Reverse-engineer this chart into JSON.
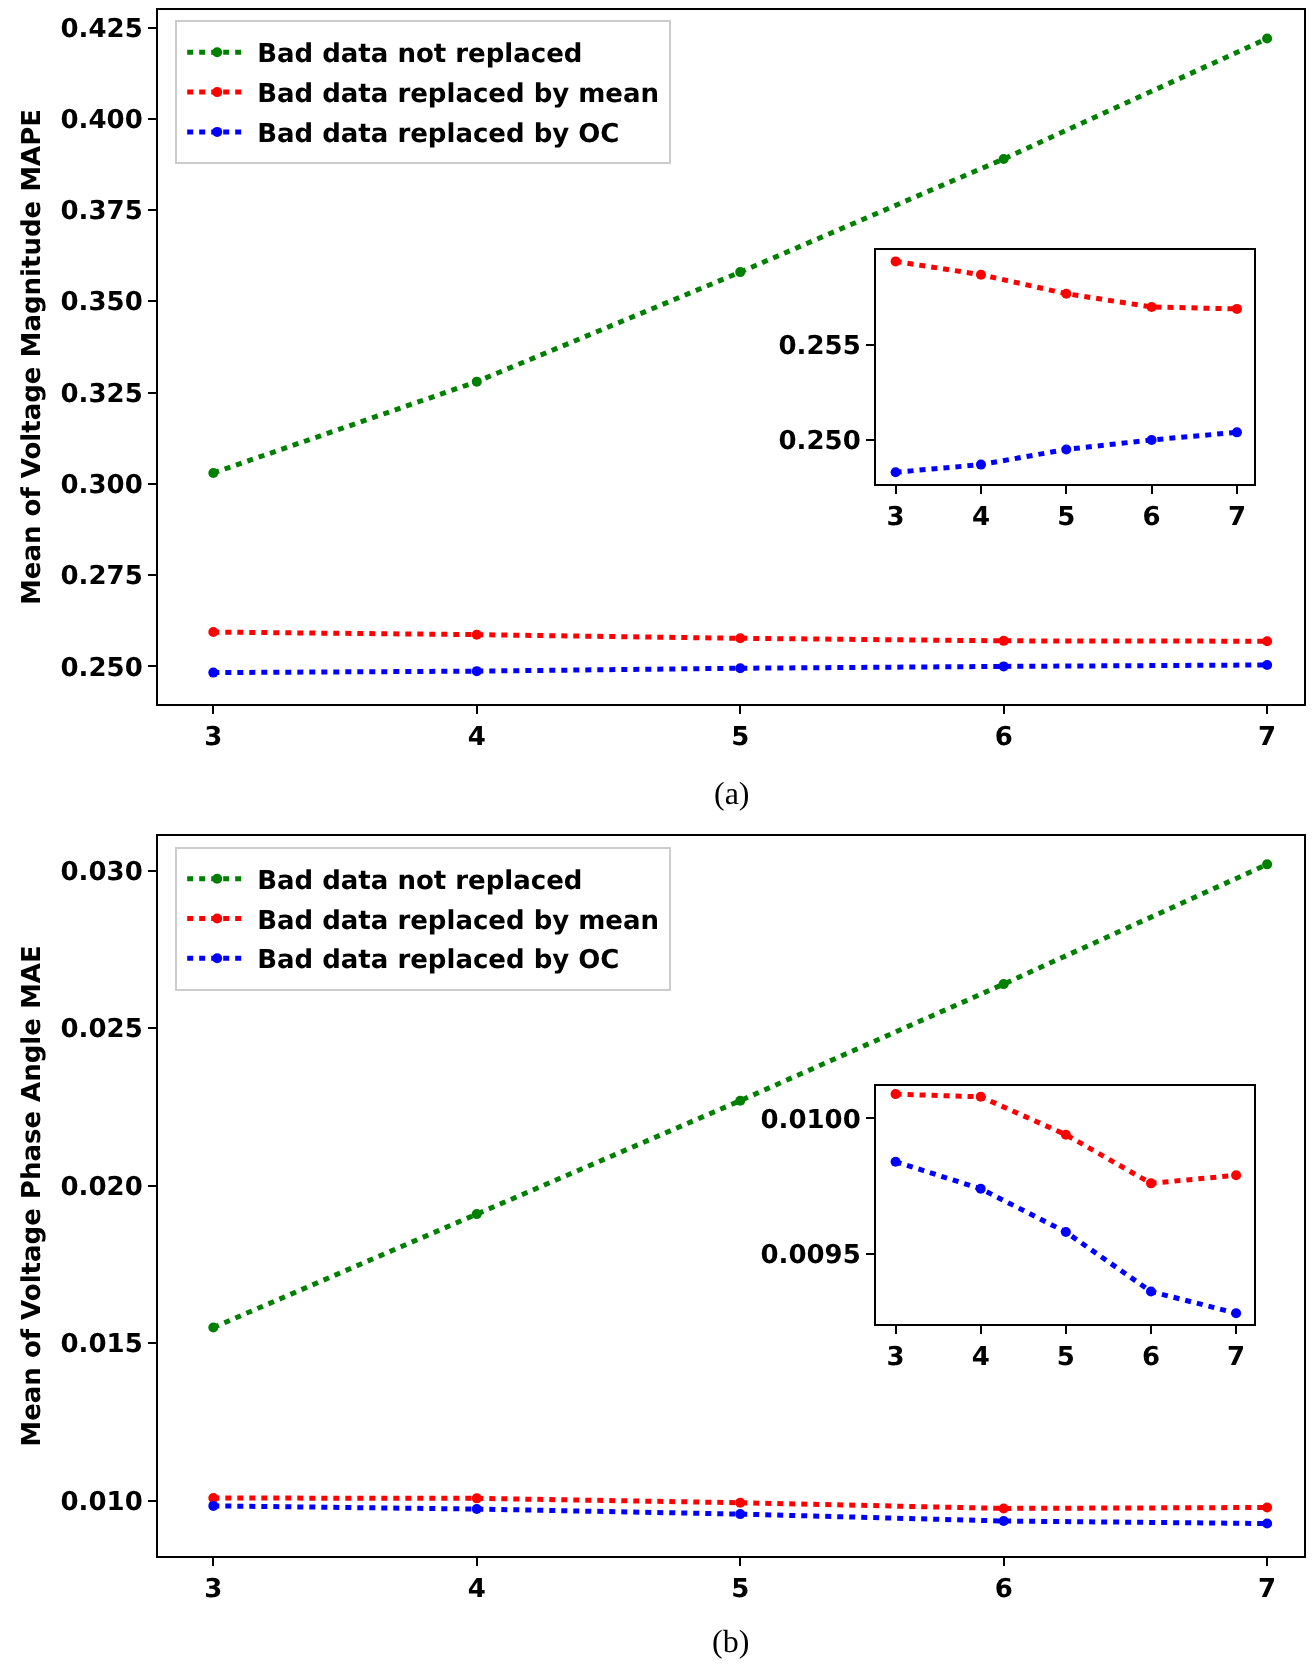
{
  "chart_data": [
    {
      "type": "line",
      "ylabel": "Mean of Voltage Magnitude MAPE",
      "x": [
        3,
        4,
        5,
        6,
        7
      ],
      "xlim": [
        2.79,
        7.14
      ],
      "xticks": [
        3,
        4,
        5,
        6,
        7
      ],
      "ylim": [
        0.2397,
        0.4298
      ],
      "yticks": [
        {
          "value": 0.25,
          "label": "0.250"
        },
        0.275,
        {
          "value": 0.3,
          "label": "0.300"
        },
        0.325,
        {
          "value": 0.35,
          "label": "0.350"
        },
        0.375,
        {
          "value": 0.4,
          "label": "0.400"
        },
        0.425
      ],
      "marker": "circle",
      "line_style": "dotted",
      "grid": false,
      "legend": "top left",
      "annotations": [
        "(a)"
      ],
      "series": [
        {
          "name": "Bad data not replaced",
          "color": "#008000",
          "values": [
            0.303,
            0.328,
            0.358,
            0.389,
            0.422
          ]
        },
        {
          "name": "Bad data replaced by mean",
          "color": "#ff0000",
          "values": [
            0.2594,
            0.2587,
            0.2577,
            0.257,
            0.2569
          ]
        },
        {
          "name": "Bad data replaced by OC",
          "color": "#0000ff",
          "values": [
            0.2483,
            0.2487,
            0.2495,
            0.25,
            0.2504
          ]
        }
      ]
    },
    {
      "type": "line",
      "x": [
        3,
        4,
        5,
        6,
        7
      ],
      "xlim": [
        2.77,
        7.2
      ],
      "xticks": [
        3,
        4,
        5,
        6,
        7
      ],
      "ylim": [
        0.24768,
        0.26
      ],
      "yticks": [
        {
          "value": 0.25,
          "label": "0.250"
        },
        0.255
      ],
      "marker": "circle",
      "line_style": "dotted",
      "grid": false,
      "series": [
        {
          "color": "#ff0000",
          "values": [
            0.2594,
            0.2587,
            0.2577,
            0.257,
            0.2569
          ]
        },
        {
          "color": "#0000ff",
          "values": [
            0.2483,
            0.2487,
            0.2495,
            0.25,
            0.2504
          ]
        }
      ]
    },
    {
      "type": "line",
      "ylabel": "Mean of Voltage Phase Angle MAE",
      "x": [
        3,
        4,
        5,
        6,
        7
      ],
      "xlim": [
        2.79,
        7.14
      ],
      "xticks": [
        3,
        4,
        5,
        6,
        7
      ],
      "ylim": [
        0.00825,
        0.0311
      ],
      "yticks": [
        {
          "value": 0.01,
          "label": "0.010"
        },
        0.015,
        {
          "value": 0.02,
          "label": "0.020"
        },
        0.025,
        {
          "value": 0.03,
          "label": "0.030"
        }
      ],
      "marker": "circle",
      "line_style": "dotted",
      "grid": false,
      "legend": "top left",
      "annotations": [
        "(b)"
      ],
      "series": [
        {
          "name": "Bad data not replaced",
          "color": "#008000",
          "values": [
            0.0155,
            0.0191,
            0.0227,
            0.0264,
            0.0302
          ]
        },
        {
          "name": "Bad data replaced by mean",
          "color": "#ff0000",
          "values": [
            0.01009,
            0.01008,
            0.00994,
            0.00976,
            0.00979
          ]
        },
        {
          "name": "Bad data replaced by OC",
          "color": "#0000ff",
          "values": [
            0.00984,
            0.00974,
            0.00958,
            0.00936,
            0.00928
          ]
        }
      ]
    },
    {
      "type": "line",
      "x": [
        3,
        4,
        5,
        6,
        7
      ],
      "xlim": [
        2.77,
        7.21
      ],
      "xticks": [
        3,
        4,
        5,
        6,
        7
      ],
      "ylim": [
        0.00924,
        0.01012
      ],
      "yticks": [
        0.0095,
        {
          "value": 0.01,
          "label": "0.0100"
        }
      ],
      "marker": "circle",
      "line_style": "dotted",
      "grid": false,
      "series": [
        {
          "color": "#ff0000",
          "values": [
            0.01009,
            0.01008,
            0.00994,
            0.00976,
            0.00979
          ]
        },
        {
          "color": "#0000ff",
          "values": [
            0.00984,
            0.00974,
            0.00958,
            0.00936,
            0.00928
          ]
        }
      ]
    }
  ]
}
